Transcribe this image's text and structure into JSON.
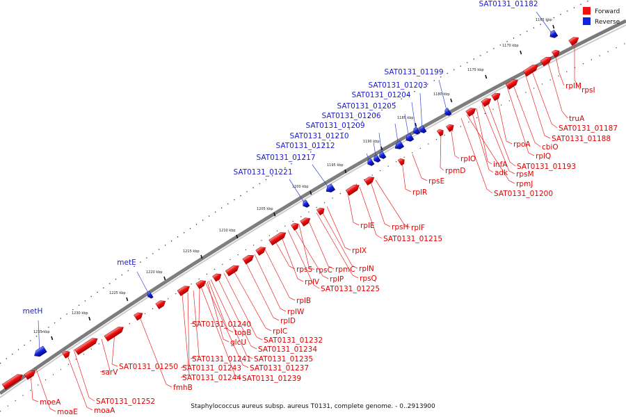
{
  "caption": "Staphylococcus aureus subsp. aureus T0131, complete genome. - 0..2913900",
  "legend": {
    "forward": "Forward",
    "reverse": "Reverse"
  },
  "colors": {
    "forward": "#ee1111",
    "reverse": "#1122dd",
    "label_forward": "#dd0000",
    "label_reverse": "#1a1acc",
    "backbone": "#8a8a8a"
  },
  "scale": {
    "unit": "kbp",
    "ticks": [
      {
        "label": "1165 kbp"
      },
      {
        "label": "1170 kbp"
      },
      {
        "label": "1175 kbp"
      },
      {
        "label": "1180 kbp"
      },
      {
        "label": "1185 kbp"
      },
      {
        "label": "1190 kbp"
      },
      {
        "label": "1195 kbp"
      },
      {
        "label": "1200 kbp"
      },
      {
        "label": "1205 kbp"
      },
      {
        "label": "1210 kbp"
      },
      {
        "label": "1215 kbp"
      },
      {
        "label": "1220 kbp"
      },
      {
        "label": "1225 kbp"
      },
      {
        "label": "1230 kbp"
      },
      {
        "label": "1235 kbp"
      }
    ]
  },
  "reverse_genes": [
    {
      "name": "SAT0131_01182"
    },
    {
      "name": "SAT0131_01199"
    },
    {
      "name": "SAT0131_01203"
    },
    {
      "name": "SAT0131_01204"
    },
    {
      "name": "SAT0131_01205"
    },
    {
      "name": "SAT0131_01206"
    },
    {
      "name": "SAT0131_01209"
    },
    {
      "name": "SAT0131_01210"
    },
    {
      "name": "SAT0131_01212"
    },
    {
      "name": "SAT0131_01217"
    },
    {
      "name": "SAT0131_01221"
    },
    {
      "name": "metE"
    },
    {
      "name": "metH"
    }
  ],
  "forward_genes": [
    {
      "name": "rplM"
    },
    {
      "name": "rpsI"
    },
    {
      "name": "truA"
    },
    {
      "name": "SAT0131_01187"
    },
    {
      "name": "SAT0131_01188"
    },
    {
      "name": "cbiO"
    },
    {
      "name": "rplQ"
    },
    {
      "name": "rpoA"
    },
    {
      "name": "SAT0131_01193"
    },
    {
      "name": "rpsM"
    },
    {
      "name": "infA"
    },
    {
      "name": "adk"
    },
    {
      "name": "rpmJ"
    },
    {
      "name": "SAT0131_01200"
    },
    {
      "name": "rplO"
    },
    {
      "name": "rpmD"
    },
    {
      "name": "rpsE"
    },
    {
      "name": "rplR"
    },
    {
      "name": "rplF"
    },
    {
      "name": "rpsH"
    },
    {
      "name": "SAT0131_01215"
    },
    {
      "name": "rplE"
    },
    {
      "name": "rplX"
    },
    {
      "name": "rplN"
    },
    {
      "name": "rpsQ"
    },
    {
      "name": "rpmC"
    },
    {
      "name": "rpsC"
    },
    {
      "name": "rplP"
    },
    {
      "name": "SAT0131_01225"
    },
    {
      "name": "rplV"
    },
    {
      "name": "rpsS"
    },
    {
      "name": "rplB"
    },
    {
      "name": "rplW"
    },
    {
      "name": "rplD"
    },
    {
      "name": "rplC"
    },
    {
      "name": "SAT0131_01232"
    },
    {
      "name": "SAT0131_01234"
    },
    {
      "name": "SAT0131_01235"
    },
    {
      "name": "SAT0131_01237"
    },
    {
      "name": "SAT0131_01239"
    },
    {
      "name": "SAT0131_01240"
    },
    {
      "name": "topB"
    },
    {
      "name": "glcU"
    },
    {
      "name": "SAT0131_01241"
    },
    {
      "name": "SAT0131_01243"
    },
    {
      "name": "SAT0131_01244"
    },
    {
      "name": "SAT0131_01250"
    },
    {
      "name": "fmhB"
    },
    {
      "name": "sarV"
    },
    {
      "name": "SAT0131_01252"
    },
    {
      "name": "moaA"
    },
    {
      "name": "moaE"
    },
    {
      "name": "moeA"
    }
  ]
}
